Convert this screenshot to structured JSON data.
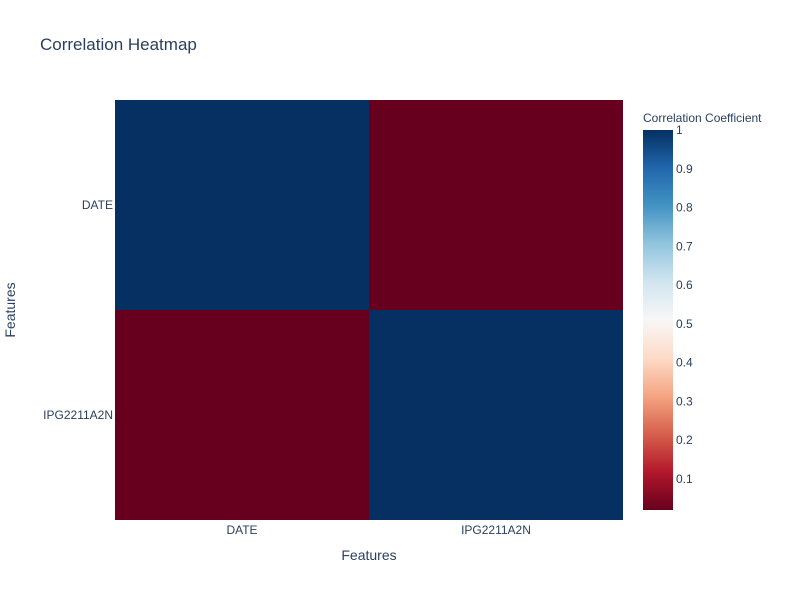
{
  "chart_data": {
    "type": "heatmap",
    "title": "Correlation Heatmap",
    "xlabel": "Features",
    "ylabel": "Features",
    "x_categories": [
      "DATE",
      "IPG2211A2N"
    ],
    "y_categories": [
      "DATE",
      "IPG2211A2N"
    ],
    "values": [
      [
        1,
        0.02
      ],
      [
        0.02,
        1
      ]
    ],
    "colorscale": "RdBu",
    "colorbar": {
      "title": "Correlation Coefficient",
      "range": [
        0.02,
        1
      ],
      "ticks": [
        "0.1",
        "0.2",
        "0.3",
        "0.4",
        "0.5",
        "0.6",
        "0.7",
        "0.8",
        "0.9",
        "1"
      ]
    },
    "colors": {
      "high": "#053061",
      "low": "#67001f",
      "text": "#2a3f5f"
    }
  }
}
